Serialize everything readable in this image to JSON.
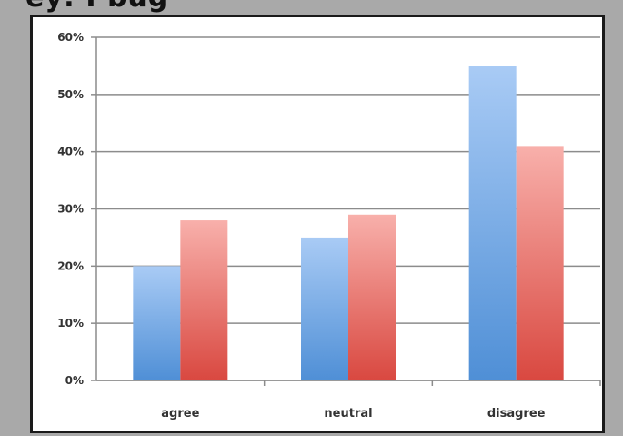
{
  "page": {
    "title_fragment": "ey: I bug"
  },
  "chart_data": {
    "type": "bar",
    "title": "",
    "xlabel": "",
    "ylabel": "",
    "categories": [
      "agree",
      "neutral",
      "disagree"
    ],
    "series": [
      {
        "values": [
          20,
          25,
          55
        ],
        "color": "#5b9bd5"
      },
      {
        "values": [
          28,
          29,
          41
        ],
        "color": "#e0524a"
      }
    ],
    "ylim": [
      0,
      60
    ],
    "yticks": [
      "0%",
      "10%",
      "20%",
      "30%",
      "40%",
      "50%",
      "60%"
    ],
    "grid": true,
    "legend": "none"
  }
}
